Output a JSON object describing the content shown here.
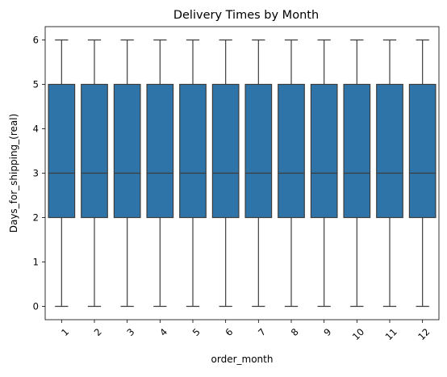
{
  "chart_data": {
    "type": "boxplot",
    "title": "Delivery Times by Month",
    "xlabel": "order_month",
    "ylabel": "Days_for_shipping_(real)",
    "categories": [
      "1",
      "2",
      "3",
      "4",
      "5",
      "6",
      "7",
      "8",
      "9",
      "10",
      "11",
      "12"
    ],
    "yticks": [
      "0",
      "1",
      "2",
      "3",
      "4",
      "5",
      "6"
    ],
    "ylim": [
      -0.3,
      6.3
    ],
    "grid": false,
    "legend": "none",
    "box_color": "#2f74a8",
    "edge_color": "#3d3d3d",
    "series": [
      {
        "category": "1",
        "min": 0,
        "q1": 2,
        "median": 3,
        "q3": 5,
        "max": 6
      },
      {
        "category": "2",
        "min": 0,
        "q1": 2,
        "median": 3,
        "q3": 5,
        "max": 6
      },
      {
        "category": "3",
        "min": 0,
        "q1": 2,
        "median": 3,
        "q3": 5,
        "max": 6
      },
      {
        "category": "4",
        "min": 0,
        "q1": 2,
        "median": 3,
        "q3": 5,
        "max": 6
      },
      {
        "category": "5",
        "min": 0,
        "q1": 2,
        "median": 3,
        "q3": 5,
        "max": 6
      },
      {
        "category": "6",
        "min": 0,
        "q1": 2,
        "median": 3,
        "q3": 5,
        "max": 6
      },
      {
        "category": "7",
        "min": 0,
        "q1": 2,
        "median": 3,
        "q3": 5,
        "max": 6
      },
      {
        "category": "8",
        "min": 0,
        "q1": 2,
        "median": 3,
        "q3": 5,
        "max": 6
      },
      {
        "category": "9",
        "min": 0,
        "q1": 2,
        "median": 3,
        "q3": 5,
        "max": 6
      },
      {
        "category": "10",
        "min": 0,
        "q1": 2,
        "median": 3,
        "q3": 5,
        "max": 6
      },
      {
        "category": "11",
        "min": 0,
        "q1": 2,
        "median": 3,
        "q3": 5,
        "max": 6
      },
      {
        "category": "12",
        "min": 0,
        "q1": 2,
        "median": 3,
        "q3": 5,
        "max": 6
      }
    ]
  }
}
